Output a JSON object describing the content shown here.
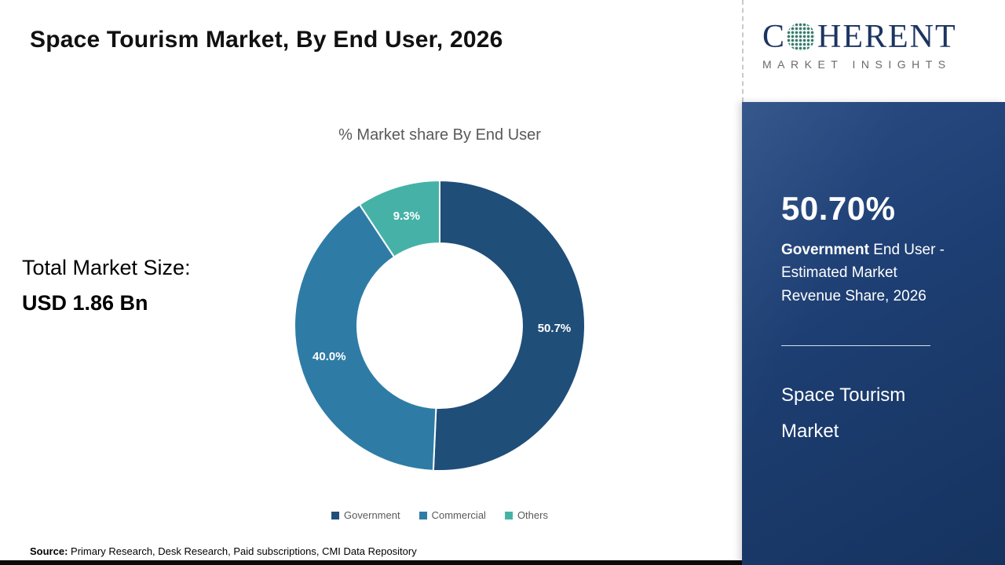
{
  "header": {
    "title": "Space Tourism Market, By End User, 2026"
  },
  "chart_data": {
    "type": "pie",
    "subtype": "donut",
    "title": "% Market share By End User",
    "categories": [
      "Government",
      "Commercial",
      "Others"
    ],
    "values": [
      50.7,
      40.0,
      9.3
    ],
    "labels": [
      "50.7%",
      "40.0%",
      "9.3%"
    ],
    "colors": [
      "#1f4e79",
      "#2e7ca6",
      "#46b2a7"
    ],
    "legend_position": "bottom",
    "annotation": {
      "label": "Total Market Size:",
      "value": "USD 1.86 Bn"
    }
  },
  "logo": {
    "c": "C",
    "rest": "HERENT",
    "tagline": "MARKET INSIGHTS"
  },
  "side_panel": {
    "stat_value": "50.70%",
    "highlight": "Government",
    "description": " End User - Estimated Market Revenue Share, 2026",
    "product_name": "Space Tourism Market"
  },
  "source": {
    "label": "Source:",
    "text": " Primary Research, Desk Research, Paid subscriptions, CMI Data Repository"
  }
}
